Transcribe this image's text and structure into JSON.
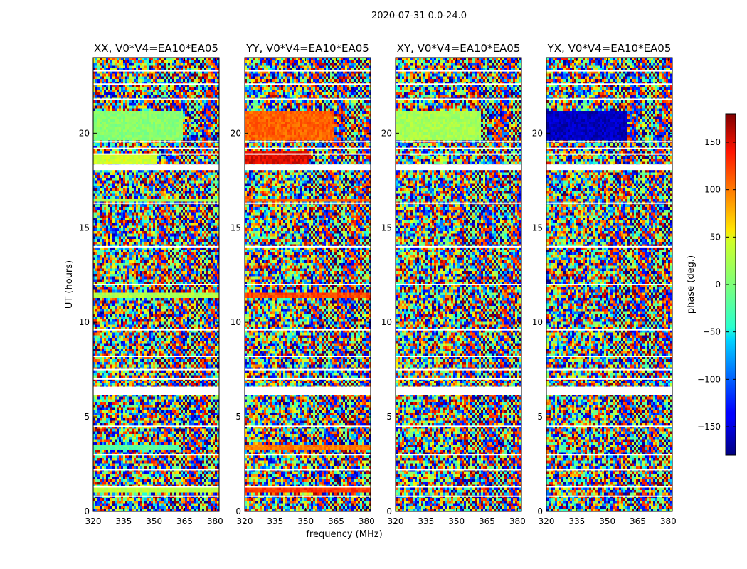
{
  "figure": {
    "suptitle": "2020-07-31 0.0-24.0",
    "colormap": "jet"
  },
  "chart_data": {
    "type": "heatmap",
    "xlabel": "frequency (MHz)",
    "ylabel": "UT (hours)",
    "colorbar_label": "phase (deg.)",
    "xlim": [
      320,
      382
    ],
    "ylim": [
      0,
      24
    ],
    "clim": [
      -180,
      180
    ],
    "xticks": [
      320,
      335,
      350,
      365,
      380
    ],
    "yticks": [
      0,
      5,
      10,
      15,
      20
    ],
    "colorbar_ticks": [
      -150,
      -100,
      -50,
      0,
      50,
      100,
      150
    ],
    "colorbar_tick_labels": [
      "−150",
      "−100",
      "−50",
      "0",
      "50",
      "100",
      "150"
    ],
    "gaps_hours": [
      [
        18.05,
        18.35
      ],
      [
        6.15,
        6.6
      ]
    ],
    "dividers_hours": [
      23.3,
      22.6,
      21.8,
      19.55,
      19.2,
      18.9,
      16.3,
      14.0,
      12.0,
      9.6,
      8.2,
      7.5,
      7.0,
      4.5,
      3.0,
      2.2,
      1.3,
      0.8
    ],
    "panels": [
      {
        "title": "XX, V0*V4=EA10*EA05",
        "coherent_bands": [
          {
            "t0": 19.6,
            "t1": 21.2,
            "phase": 5,
            "f_to": 364
          },
          {
            "t0": 18.4,
            "t1": 18.9,
            "phase": 40,
            "f_to": 352
          },
          {
            "t0": 11.3,
            "t1": 11.55,
            "phase": 25,
            "f_to": 382
          },
          {
            "t0": 16.35,
            "t1": 16.5,
            "phase": 20,
            "f_to": 382
          },
          {
            "t0": 3.3,
            "t1": 3.6,
            "phase": -20,
            "f_to": 362
          },
          {
            "t0": 1.0,
            "t1": 1.3,
            "phase": 30,
            "f_to": 382
          }
        ]
      },
      {
        "title": "YY, V0*V4=EA10*EA05",
        "coherent_bands": [
          {
            "t0": 19.6,
            "t1": 21.2,
            "phase": 110,
            "f_to": 364
          },
          {
            "t0": 18.4,
            "t1": 19.1,
            "phase": 150,
            "f_to": 352
          },
          {
            "t0": 11.3,
            "t1": 11.55,
            "phase": 120,
            "f_to": 382
          },
          {
            "t0": 16.35,
            "t1": 16.5,
            "phase": 110,
            "f_to": 382
          },
          {
            "t0": 3.3,
            "t1": 3.6,
            "phase": 100,
            "f_to": 382
          },
          {
            "t0": 1.0,
            "t1": 1.3,
            "phase": 130,
            "f_to": 382
          }
        ]
      },
      {
        "title": "XY, V0*V4=EA10*EA05",
        "coherent_bands": [
          {
            "t0": 19.6,
            "t1": 21.2,
            "phase": 20,
            "f_to": 362
          }
        ]
      },
      {
        "title": "YX, V0*V4=EA10*EA05",
        "coherent_bands": [
          {
            "t0": 19.6,
            "t1": 21.2,
            "phase": -160,
            "f_to": 360
          }
        ]
      }
    ]
  }
}
